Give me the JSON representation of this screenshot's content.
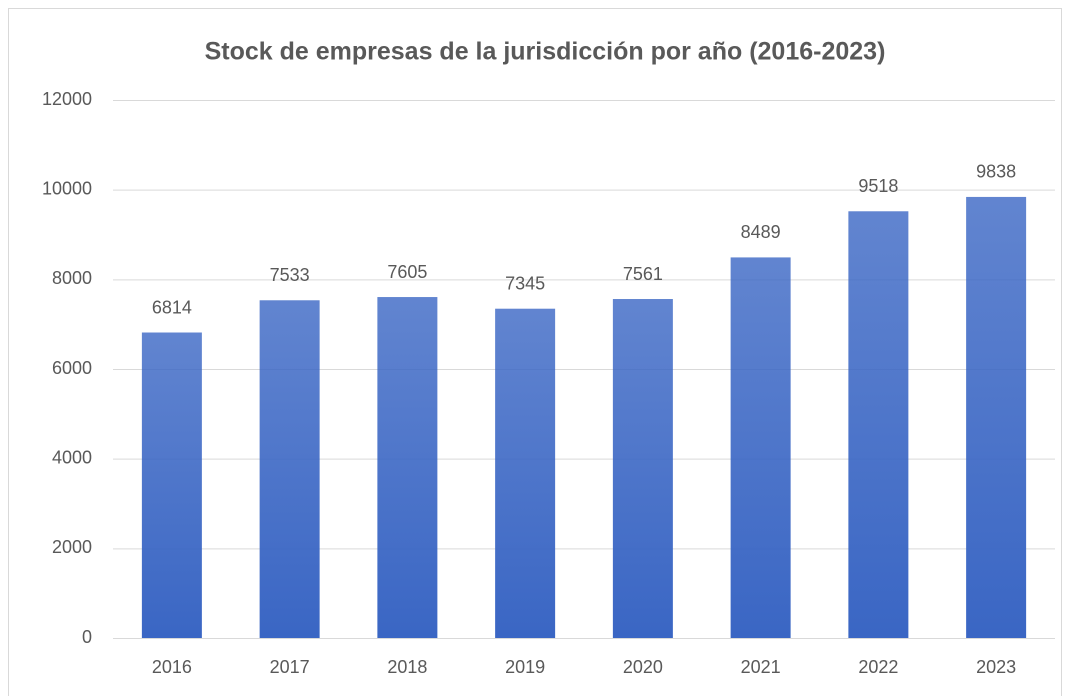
{
  "chart_data": {
    "type": "bar",
    "title": "Stock de empresas de la jurisdicción por año (2016-2023)",
    "categories": [
      "2016",
      "2017",
      "2018",
      "2019",
      "2020",
      "2021",
      "2022",
      "2023"
    ],
    "values": [
      6814,
      7533,
      7605,
      7345,
      7561,
      8489,
      9518,
      9838
    ],
    "color": "#3a66c4",
    "ylim": [
      0,
      12000
    ],
    "yticks": [
      0,
      2000,
      4000,
      6000,
      8000,
      10000,
      12000
    ],
    "grid": true
  }
}
